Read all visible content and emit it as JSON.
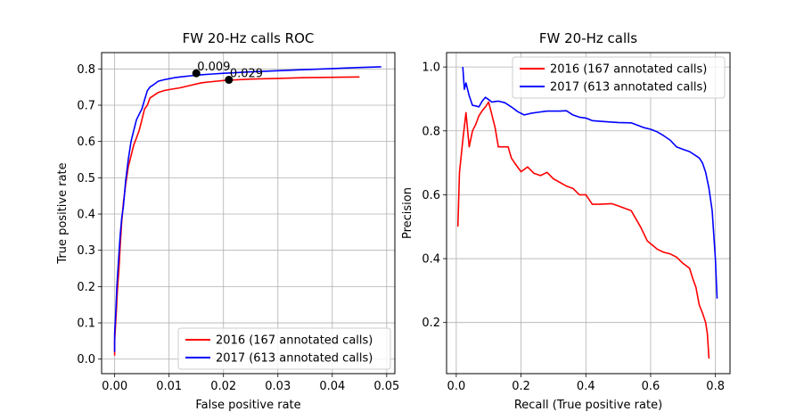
{
  "chart_data": [
    {
      "type": "line",
      "title": "FW 20-Hz calls ROC",
      "xlabel": "False positive rate",
      "ylabel": "True positive rate",
      "xlim": [
        -0.0024,
        0.0515
      ],
      "ylim": [
        -0.04,
        0.845
      ],
      "xticks": [
        0,
        0.01,
        0.02,
        0.03,
        0.04,
        0.05
      ],
      "xtick_labels": [
        "0.00",
        "0.01",
        "0.02",
        "0.03",
        "0.04",
        "0.05"
      ],
      "yticks": [
        0,
        0.1,
        0.2,
        0.3,
        0.4,
        0.5,
        0.6,
        0.7,
        0.8
      ],
      "ytick_labels": [
        "0.0",
        "0.1",
        "0.2",
        "0.3",
        "0.4",
        "0.5",
        "0.6",
        "0.7",
        "0.8"
      ],
      "grid": true,
      "legend_position": "lower-right",
      "series": [
        {
          "name": "2016 (167 annotated calls)",
          "color": "#ff0000",
          "x": [
            0.0,
            0.0,
            0.0003,
            0.0005,
            0.0008,
            0.001,
            0.0013,
            0.0016,
            0.002,
            0.0025,
            0.003,
            0.0035,
            0.004,
            0.0045,
            0.005,
            0.0055,
            0.006,
            0.0065,
            0.007,
            0.008,
            0.009,
            0.01,
            0.012,
            0.014,
            0.016,
            0.018,
            0.02,
            0.025,
            0.03,
            0.035,
            0.04,
            0.045
          ],
          "y": [
            0.01,
            0.05,
            0.13,
            0.19,
            0.25,
            0.31,
            0.38,
            0.43,
            0.48,
            0.53,
            0.56,
            0.59,
            0.61,
            0.63,
            0.66,
            0.69,
            0.7,
            0.72,
            0.725,
            0.735,
            0.74,
            0.743,
            0.748,
            0.755,
            0.762,
            0.765,
            0.768,
            0.772,
            0.774,
            0.776,
            0.777,
            0.778
          ]
        },
        {
          "name": "2017 (613 annotated calls)",
          "color": "#0000ff",
          "x": [
            0.0,
            0.0,
            0.0002,
            0.0004,
            0.0007,
            0.001,
            0.0013,
            0.0016,
            0.002,
            0.0025,
            0.003,
            0.0035,
            0.004,
            0.0045,
            0.005,
            0.0055,
            0.006,
            0.0065,
            0.007,
            0.008,
            0.009,
            0.01,
            0.011,
            0.012,
            0.014,
            0.016,
            0.018,
            0.02,
            0.025,
            0.03,
            0.035,
            0.04,
            0.045,
            0.049
          ],
          "y": [
            0.02,
            0.07,
            0.13,
            0.2,
            0.27,
            0.34,
            0.39,
            0.42,
            0.49,
            0.55,
            0.6,
            0.63,
            0.66,
            0.675,
            0.69,
            0.715,
            0.74,
            0.75,
            0.755,
            0.766,
            0.77,
            0.773,
            0.776,
            0.778,
            0.781,
            0.784,
            0.786,
            0.788,
            0.792,
            0.795,
            0.798,
            0.801,
            0.804,
            0.806
          ]
        }
      ],
      "annotations": [
        {
          "text": "0.009",
          "x": 0.015,
          "y": 0.788
        },
        {
          "text": "0.029",
          "x": 0.021,
          "y": 0.77
        }
      ]
    },
    {
      "type": "line",
      "title": "FW 20-Hz calls",
      "xlabel": "Recall (True positive rate)",
      "ylabel": "Precision",
      "xlim": [
        -0.03,
        0.845
      ],
      "ylim": [
        0.04,
        1.045
      ],
      "xticks": [
        0,
        0.2,
        0.4,
        0.6,
        0.8
      ],
      "xtick_labels": [
        "0.0",
        "0.2",
        "0.4",
        "0.6",
        "0.8"
      ],
      "yticks": [
        0.2,
        0.4,
        0.6,
        0.8,
        1.0
      ],
      "ytick_labels": [
        "0.2",
        "0.4",
        "0.6",
        "0.8",
        "1.0"
      ],
      "grid": true,
      "legend_position": "top-right",
      "series": [
        {
          "name": "2016 (167 annotated calls)",
          "color": "#ff0000",
          "x": [
            0.005,
            0.01,
            0.02,
            0.03,
            0.04,
            0.05,
            0.06,
            0.07,
            0.08,
            0.09,
            0.1,
            0.11,
            0.12,
            0.13,
            0.14,
            0.15,
            0.16,
            0.17,
            0.18,
            0.2,
            0.22,
            0.24,
            0.26,
            0.28,
            0.3,
            0.34,
            0.36,
            0.38,
            0.4,
            0.42,
            0.44,
            0.48,
            0.5,
            0.54,
            0.57,
            0.59,
            0.62,
            0.64,
            0.66,
            0.68,
            0.7,
            0.72,
            0.73,
            0.74,
            0.75,
            0.76,
            0.77,
            0.775,
            0.78
          ],
          "y": [
            0.5,
            0.67,
            0.77,
            0.857,
            0.75,
            0.8,
            0.82,
            0.847,
            0.863,
            0.875,
            0.89,
            0.85,
            0.81,
            0.75,
            0.75,
            0.75,
            0.75,
            0.715,
            0.7,
            0.672,
            0.687,
            0.667,
            0.66,
            0.67,
            0.65,
            0.627,
            0.62,
            0.6,
            0.6,
            0.57,
            0.57,
            0.572,
            0.565,
            0.55,
            0.497,
            0.455,
            0.43,
            0.42,
            0.415,
            0.405,
            0.385,
            0.37,
            0.338,
            0.31,
            0.255,
            0.23,
            0.2,
            0.165,
            0.087
          ]
        },
        {
          "name": "2017 (613 annotated calls)",
          "color": "#0000ff",
          "x": [
            0.02,
            0.025,
            0.03,
            0.035,
            0.04,
            0.05,
            0.06,
            0.07,
            0.08,
            0.09,
            0.1,
            0.11,
            0.12,
            0.13,
            0.15,
            0.17,
            0.19,
            0.21,
            0.23,
            0.25,
            0.28,
            0.32,
            0.34,
            0.36,
            0.38,
            0.4,
            0.42,
            0.46,
            0.5,
            0.54,
            0.58,
            0.6,
            0.62,
            0.64,
            0.66,
            0.68,
            0.7,
            0.72,
            0.74,
            0.75,
            0.76,
            0.77,
            0.78,
            0.79,
            0.8,
            0.805
          ],
          "y": [
            1.0,
            0.93,
            0.95,
            0.93,
            0.91,
            0.88,
            0.878,
            0.875,
            0.893,
            0.905,
            0.898,
            0.89,
            0.892,
            0.893,
            0.888,
            0.875,
            0.86,
            0.85,
            0.855,
            0.858,
            0.862,
            0.862,
            0.863,
            0.85,
            0.843,
            0.84,
            0.832,
            0.829,
            0.826,
            0.825,
            0.81,
            0.805,
            0.797,
            0.785,
            0.771,
            0.75,
            0.742,
            0.735,
            0.722,
            0.715,
            0.7,
            0.67,
            0.62,
            0.55,
            0.4,
            0.275
          ]
        }
      ]
    }
  ]
}
